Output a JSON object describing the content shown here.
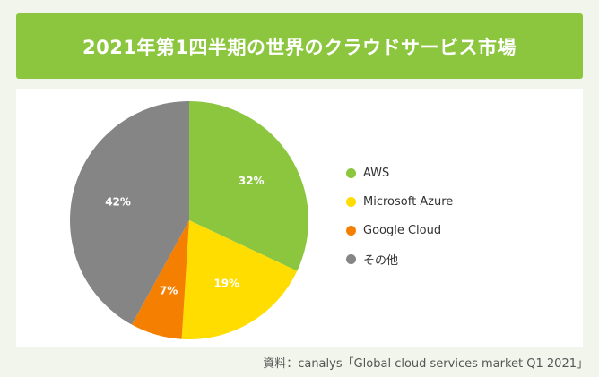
{
  "chart_data": {
    "type": "pie",
    "title": "2021年第1四半期の世界のクラウドサービス市場",
    "categories": [
      "AWS",
      "Microsoft Azure",
      "Google Cloud",
      "その他"
    ],
    "values": [
      32,
      19,
      7,
      42
    ],
    "value_labels": [
      "32%",
      "19%",
      "7%",
      "42%"
    ],
    "colors": [
      "#8cc63f",
      "#ffdd00",
      "#f57f00",
      "#858585"
    ],
    "legend_position": "right",
    "start_angle_deg": 0,
    "direction": "clockwise"
  },
  "legend": {
    "items": [
      {
        "label": "AWS",
        "color": "#8cc63f"
      },
      {
        "label": "Microsoft Azure",
        "color": "#ffdd00"
      },
      {
        "label": "Google Cloud",
        "color": "#f57f00"
      },
      {
        "label": "その他",
        "color": "#858585"
      }
    ]
  },
  "source_text": "資料：canalys「Global cloud services market Q1 2021」",
  "colors": {
    "title_bg": "#8cc63f",
    "page_bg": "#f1f5ec",
    "panel_bg": "#ffffff"
  }
}
